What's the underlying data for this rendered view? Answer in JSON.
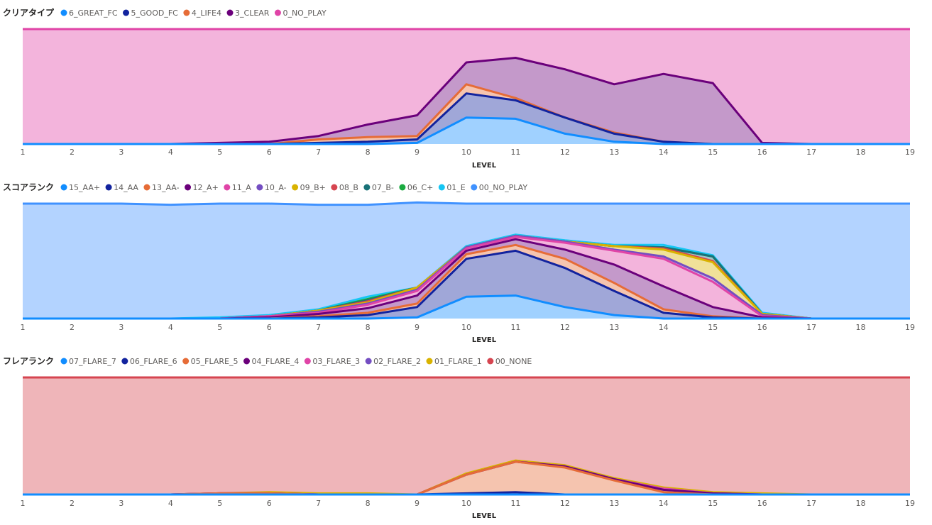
{
  "chart_data": [
    {
      "type": "area",
      "stacked": true,
      "title": "クリアタイプ",
      "xlabel": "LEVEL",
      "ylabel": "",
      "x": [
        1,
        2,
        3,
        4,
        5,
        6,
        7,
        8,
        9,
        10,
        11,
        12,
        13,
        14,
        15,
        16,
        17,
        18,
        19
      ],
      "ylim": [
        0,
        100
      ],
      "legend_position": "top-left",
      "series": [
        {
          "name": "6_GREAT_FC",
          "color": "#118DFF",
          "values": [
            0,
            0,
            0,
            0,
            0,
            0,
            0,
            0,
            1,
            23,
            22,
            9,
            2,
            0,
            0,
            0,
            0,
            0,
            0
          ]
        },
        {
          "name": "5_GOOD_FC",
          "color": "#12239E",
          "values": [
            0,
            0,
            0,
            0,
            0,
            0,
            1,
            2,
            3,
            21,
            16,
            14,
            7,
            2,
            0,
            0,
            0,
            0,
            0
          ]
        },
        {
          "name": "4_LIFE4",
          "color": "#E66C37",
          "values": [
            0,
            0,
            0,
            0,
            0,
            0,
            3,
            4,
            3,
            8,
            2,
            0,
            1,
            0,
            0,
            0,
            0,
            0,
            0
          ]
        },
        {
          "name": "3_CLEAR",
          "color": "#6B007B",
          "values": [
            0,
            0,
            0,
            0,
            1,
            2,
            3,
            11,
            18,
            19,
            35,
            42,
            42,
            59,
            53,
            1,
            0,
            0,
            0
          ]
        },
        {
          "name": "0_NO_PLAY",
          "color": "#E044A7",
          "values": [
            100,
            100,
            100,
            100,
            99,
            98,
            93,
            83,
            75,
            29,
            25,
            35,
            48,
            39,
            47,
            99,
            100,
            100,
            100
          ]
        }
      ]
    },
    {
      "type": "area",
      "stacked": true,
      "title": "スコアランク",
      "xlabel": "LEVEL",
      "ylabel": "",
      "x": [
        1,
        2,
        3,
        4,
        5,
        6,
        7,
        8,
        9,
        10,
        11,
        12,
        13,
        14,
        15,
        16,
        17,
        18,
        19
      ],
      "ylim": [
        0,
        100
      ],
      "legend_position": "top-left",
      "series": [
        {
          "name": "15_AA+",
          "color": "#118DFF",
          "values": [
            0,
            0,
            0,
            0,
            0,
            0,
            0,
            0,
            1,
            19,
            20,
            10,
            3,
            0,
            0,
            0,
            0,
            0,
            0
          ]
        },
        {
          "name": "14_AA",
          "color": "#12239E",
          "values": [
            0,
            0,
            0,
            0,
            0,
            0,
            1,
            3,
            9,
            33,
            39,
            34,
            21,
            5,
            1,
            0,
            0,
            0,
            0
          ]
        },
        {
          "name": "13_AA-",
          "color": "#E66C37",
          "values": [
            0,
            0,
            0,
            0,
            0,
            0,
            1,
            2,
            3,
            4,
            5,
            8,
            7,
            3,
            1,
            0,
            0,
            0,
            0
          ]
        },
        {
          "name": "12_A+",
          "color": "#6B007B",
          "values": [
            0,
            0,
            0,
            0,
            0,
            1,
            2,
            4,
            7,
            3,
            5,
            8,
            16,
            20,
            8,
            1,
            0,
            0,
            0
          ]
        },
        {
          "name": "11_A",
          "color": "#E044A7",
          "values": [
            0,
            0,
            0,
            0,
            0,
            1,
            1,
            3,
            4,
            2,
            2,
            6,
            12,
            24,
            22,
            1,
            0,
            0,
            0
          ]
        },
        {
          "name": "10_A-",
          "color": "#744EC2",
          "values": [
            0,
            0,
            0,
            0,
            0,
            0,
            1,
            1,
            1,
            1,
            1,
            1,
            1,
            2,
            3,
            1,
            0,
            0,
            0
          ]
        },
        {
          "name": "09_B+",
          "color": "#D9B300",
          "values": [
            0,
            0,
            0,
            0,
            0,
            0,
            1,
            1,
            2,
            0,
            0,
            0,
            3,
            6,
            14,
            1,
            0,
            0,
            0
          ]
        },
        {
          "name": "08_B",
          "color": "#D64550",
          "values": [
            0,
            0,
            0,
            0,
            0,
            0,
            0,
            1,
            0,
            0,
            0,
            0,
            0,
            1,
            1,
            0,
            0,
            0,
            0
          ]
        },
        {
          "name": "07_B-",
          "color": "#197278",
          "values": [
            0,
            0,
            0,
            0,
            0,
            0,
            0,
            1,
            0,
            0,
            0,
            0,
            0,
            1,
            4,
            0,
            0,
            0,
            0
          ]
        },
        {
          "name": "06_C+",
          "color": "#1AAB40",
          "values": [
            0,
            0,
            0,
            0,
            0,
            0,
            0,
            1,
            0,
            0,
            0,
            0,
            0,
            0,
            0,
            0,
            0,
            0,
            0
          ]
        },
        {
          "name": "01_E",
          "color": "#15C6F4",
          "values": [
            0,
            0,
            0,
            0,
            1,
            1,
            1,
            2,
            0,
            1,
            1,
            1,
            1,
            2,
            1,
            1,
            0,
            0,
            0
          ]
        },
        {
          "name": "00_NO_PLAY",
          "color": "#4092FF",
          "values": [
            100,
            100,
            100,
            99,
            99,
            97,
            91,
            80,
            74,
            37,
            27,
            32,
            36,
            36,
            45,
            95,
            100,
            100,
            100
          ]
        }
      ]
    },
    {
      "type": "area",
      "stacked": true,
      "title": "フレアランク",
      "xlabel": "LEVEL",
      "ylabel": "",
      "x": [
        1,
        2,
        3,
        4,
        5,
        6,
        7,
        8,
        9,
        10,
        11,
        12,
        13,
        14,
        15,
        16,
        17,
        18,
        19
      ],
      "ylim": [
        0,
        100
      ],
      "legend_position": "top-left",
      "series": [
        {
          "name": "07_FLARE_7",
          "color": "#118DFF",
          "values": [
            0,
            0,
            0,
            0,
            0,
            0,
            0,
            0,
            0,
            0,
            0,
            0,
            0,
            0,
            0,
            0,
            0,
            0,
            0
          ]
        },
        {
          "name": "06_FLARE_6",
          "color": "#12239E",
          "values": [
            0,
            0,
            0,
            0,
            0,
            0,
            0,
            0,
            0,
            1,
            2,
            0,
            0,
            0,
            0,
            0,
            0,
            0,
            0
          ]
        },
        {
          "name": "05_FLARE_5",
          "color": "#E66C37",
          "values": [
            0,
            0,
            0,
            0,
            1,
            1,
            0,
            0,
            0,
            16,
            26,
            23,
            12,
            2,
            0,
            0,
            0,
            0,
            0
          ]
        },
        {
          "name": "04_FLARE_4",
          "color": "#6B007B",
          "values": [
            0,
            0,
            0,
            0,
            0,
            0,
            0,
            0,
            0,
            0,
            0,
            1,
            1,
            2,
            1,
            0,
            0,
            0,
            0
          ]
        },
        {
          "name": "03_FLARE_3",
          "color": "#E044A7",
          "values": [
            0,
            0,
            0,
            0,
            0,
            0,
            0,
            0,
            0,
            0,
            0,
            0,
            0,
            1,
            0,
            0,
            0,
            0,
            0
          ]
        },
        {
          "name": "02_FLARE_2",
          "color": "#744EC2",
          "values": [
            0,
            0,
            0,
            0,
            0,
            0,
            0,
            0,
            0,
            0,
            0,
            0,
            0,
            0,
            0,
            0,
            0,
            0,
            0
          ]
        },
        {
          "name": "01_FLARE_1",
          "color": "#D9B300",
          "values": [
            0,
            0,
            0,
            0,
            0,
            1,
            1,
            1,
            0,
            1,
            1,
            1,
            1,
            1,
            1,
            1,
            0,
            0,
            0
          ]
        },
        {
          "name": "00_NONE",
          "color": "#D64550",
          "values": [
            100,
            100,
            100,
            100,
            99,
            98,
            99,
            99,
            100,
            82,
            71,
            75,
            86,
            94,
            98,
            99,
            100,
            100,
            100
          ]
        }
      ]
    }
  ]
}
